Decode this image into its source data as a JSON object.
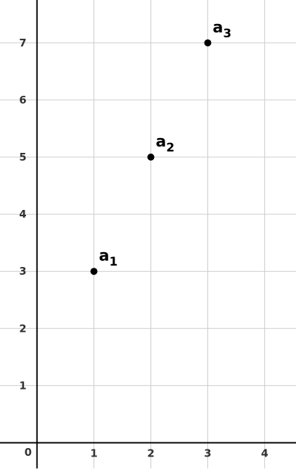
{
  "chart_data": {
    "type": "scatter",
    "title": "",
    "xlabel": "",
    "ylabel": "",
    "xlim": [
      -0.65,
      4.55
    ],
    "ylim": [
      -0.45,
      7.75
    ],
    "origin_label": "0",
    "x_ticks": [
      1,
      2,
      3,
      4
    ],
    "y_ticks": [
      1,
      2,
      3,
      4,
      5,
      6,
      7
    ],
    "grid": true,
    "series": [
      {
        "points": [
          {
            "label": "a",
            "subscript": "1",
            "x": 1,
            "y": 3
          },
          {
            "label": "a",
            "subscript": "2",
            "x": 2,
            "y": 5
          },
          {
            "label": "a",
            "subscript": "3",
            "x": 3,
            "y": 7
          }
        ]
      }
    ],
    "colors": {
      "grid": "#cccccc",
      "axis": "#000000",
      "point": "#000000",
      "tick_text": "#333333"
    }
  }
}
